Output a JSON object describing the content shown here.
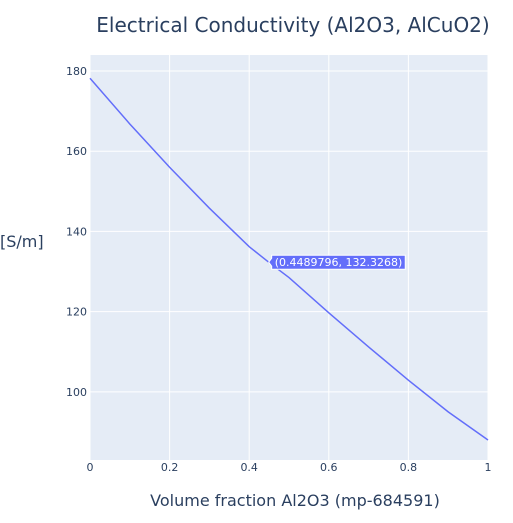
{
  "chart_data": {
    "type": "line",
    "title": "Electrical Conductivity (Al2O3, AlCuO2)",
    "xlabel": "Volume fraction Al2O3 (mp-684591)",
    "ylabel": "[S/m]",
    "xlim": [
      0,
      1
    ],
    "ylim": [
      83,
      184
    ],
    "x_ticks": [
      0,
      0.2,
      0.4,
      0.6,
      0.8,
      1
    ],
    "x_tick_labels": [
      "0",
      "0.2",
      "0.4",
      "0.6",
      "0.8",
      "1"
    ],
    "y_ticks": [
      100,
      120,
      140,
      160,
      180
    ],
    "y_tick_labels": [
      "100",
      "120",
      "140",
      "160",
      "180"
    ],
    "grid": true,
    "line_color": "#636efa",
    "plot_bg": "#e5ecf6",
    "series": [
      {
        "x": [
          0,
          0.1,
          0.2,
          0.3,
          0.4,
          0.4489796,
          0.5,
          0.6,
          0.7,
          0.8,
          0.9,
          1
        ],
        "y": [
          178.2,
          166.8,
          156.0,
          145.8,
          136.2,
          132.3268,
          128.5,
          119.7,
          111.2,
          102.9,
          95.0,
          88.0
        ]
      }
    ],
    "hover": {
      "x": 0.4489796,
      "y": 132.3268,
      "label": "(0.4489796, 132.3268)"
    }
  }
}
